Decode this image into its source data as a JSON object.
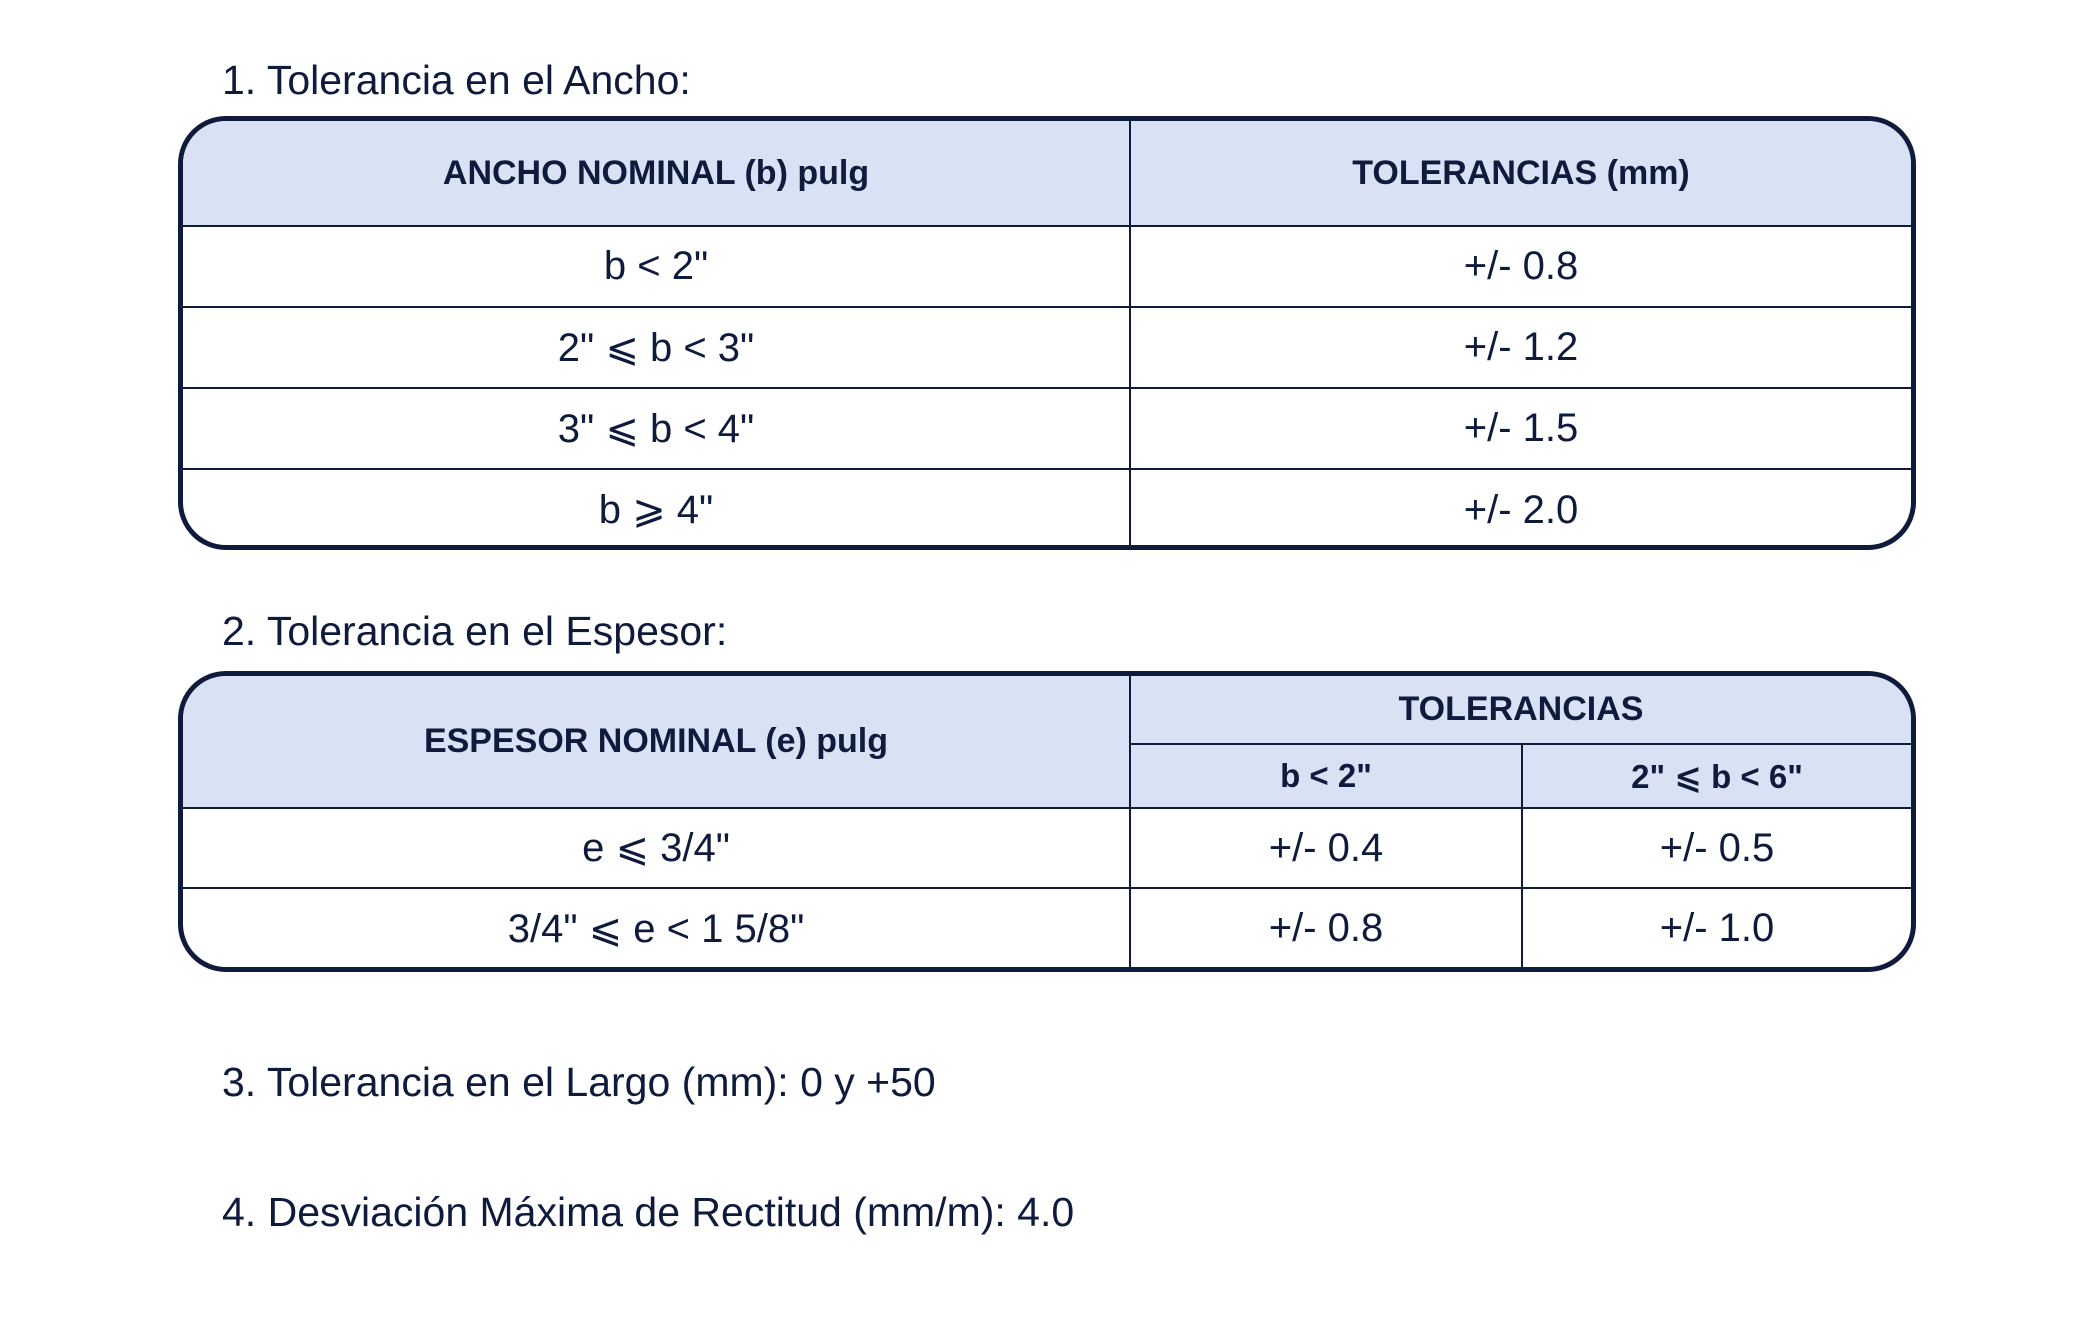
{
  "section1": {
    "heading": "1. Tolerancia en el Ancho:",
    "headers": [
      "ANCHO NOMINAL (b) pulg",
      "TOLERANCIAS (mm)"
    ],
    "rows": [
      [
        "b < 2\"",
        "+/- 0.8"
      ],
      [
        "2\" ⩽ b < 3\"",
        "+/- 1.2"
      ],
      [
        "3\" ⩽  b < 4\"",
        "+/- 1.5"
      ],
      [
        "b ⩾ 4\"",
        "+/- 2.0"
      ]
    ]
  },
  "section2": {
    "heading": "2. Tolerancia en el Espesor:",
    "header_main": "ESPESOR NOMINAL (e) pulg",
    "header_group": "TOLERANCIAS",
    "subheaders": [
      "b < 2\"",
      "2\" ⩽ b < 6\""
    ],
    "rows": [
      [
        "e ⩽  3/4\"",
        "+/- 0.4",
        "+/- 0.5"
      ],
      [
        "3/4\" ⩽ e < 1 5/8\"",
        "+/- 0.8",
        "+/- 1.0"
      ]
    ]
  },
  "section3": {
    "text": "3. Tolerancia en el Largo (mm): 0 y +50"
  },
  "section4": {
    "text": "4. Desviación Máxima de Rectitud (mm/m): 4.0"
  },
  "colors": {
    "text": "#0f1b3d",
    "header_fill": "#d9e2f4",
    "border": "#0f1b3d"
  }
}
